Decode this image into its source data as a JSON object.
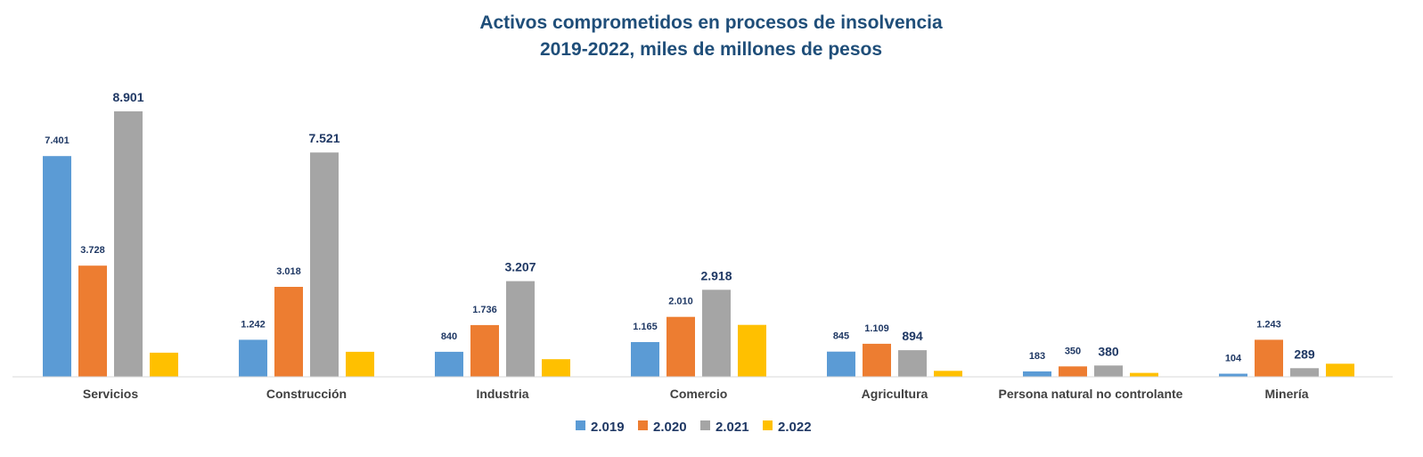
{
  "chart_data": {
    "type": "bar",
    "title_lines": [
      "Activos comprometidos en procesos de insolvencia",
      "2019-2022, miles de millones de pesos"
    ],
    "categories": [
      "Servicios",
      "Construcción",
      "Industria",
      "Comercio",
      "Agricultura",
      "Persona natural no controlante",
      "Minería"
    ],
    "series": [
      {
        "name": "2.019",
        "color": "#5B9BD5",
        "values": [
          7401,
          1242,
          840,
          1165,
          845,
          183,
          104
        ],
        "labels": [
          "7.401",
          "1.242",
          "840",
          "1.165",
          "845",
          "183",
          "104"
        ]
      },
      {
        "name": "2.020",
        "color": "#ED7D31",
        "values": [
          3728,
          3018,
          1736,
          2010,
          1109,
          350,
          1243
        ],
        "labels": [
          "3.728",
          "3.018",
          "1.736",
          "2.010",
          "1.109",
          "350",
          "1.243"
        ]
      },
      {
        "name": "2.021",
        "color": "#A5A5A5",
        "values": [
          8901,
          7521,
          3207,
          2918,
          894,
          380,
          289
        ],
        "labels": [
          "8.901",
          "7.521",
          "3.207",
          "2.918",
          "894",
          "380",
          "289"
        ]
      },
      {
        "name": "2.022",
        "color": "#FFC000",
        "values": [
          810,
          840,
          590,
          1740,
          200,
          130,
          440
        ],
        "labels": [
          "",
          "",
          "",
          "",
          "",
          "",
          ""
        ]
      }
    ],
    "ylim": [
      0,
      9000
    ],
    "legend_position": "bottom",
    "grid": false
  }
}
